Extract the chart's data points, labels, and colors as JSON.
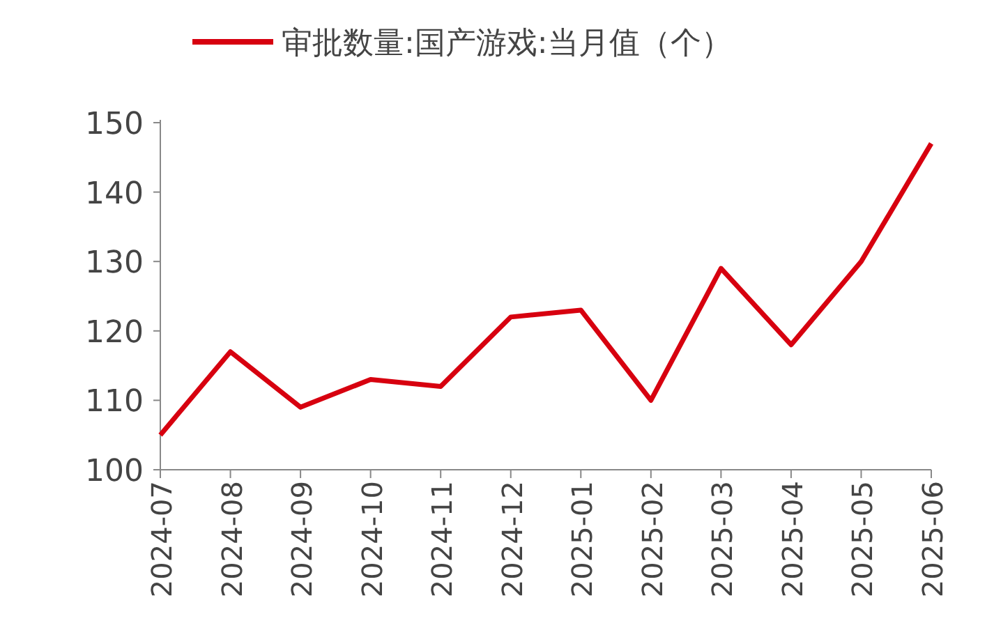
{
  "chart_data": {
    "type": "line",
    "categories": [
      "2024-07",
      "2024-08",
      "2024-09",
      "2024-10",
      "2024-11",
      "2024-12",
      "2025-01",
      "2025-02",
      "2025-03",
      "2025-04",
      "2025-05",
      "2025-06"
    ],
    "series": [
      {
        "name": "审批数量:国产游戏:当月值（个）",
        "color": "#d7000f",
        "values": [
          105,
          117,
          109,
          113,
          112,
          122,
          123,
          110,
          129,
          118,
          130,
          147
        ]
      }
    ],
    "ylim": [
      100,
      150
    ],
    "yticks": [
      100,
      110,
      120,
      130,
      140,
      150
    ],
    "legend": "top",
    "grid": false,
    "marker": "none",
    "line_style": "solid"
  }
}
